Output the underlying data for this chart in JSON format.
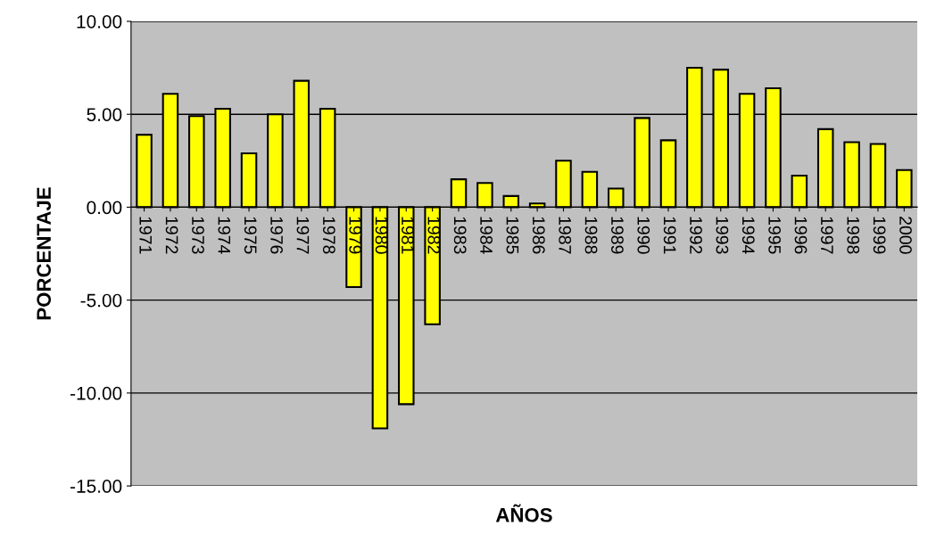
{
  "chart_data": {
    "type": "bar",
    "xlabel": "AÑOS",
    "ylabel": "PORCENTAJE",
    "categories": [
      "1971",
      "1972",
      "1973",
      "1974",
      "1975",
      "1976",
      "1977",
      "1978",
      "1979",
      "1980",
      "1981",
      "1982",
      "1983",
      "1984",
      "1985",
      "1986",
      "1987",
      "1988",
      "1989",
      "1990",
      "1991",
      "1992",
      "1993",
      "1994",
      "1995",
      "1996",
      "1997",
      "1998",
      "1999",
      "2000"
    ],
    "values": [
      3.9,
      6.1,
      4.9,
      5.3,
      2.9,
      5.0,
      6.8,
      5.3,
      -4.3,
      -11.9,
      -10.6,
      -6.3,
      1.5,
      1.3,
      0.6,
      0.2,
      2.5,
      1.9,
      1.0,
      4.8,
      3.6,
      7.5,
      7.4,
      6.1,
      6.4,
      1.7,
      4.2,
      3.5,
      3.4,
      2.0
    ],
    "color": "#ffff00",
    "ylim": [
      -15,
      10
    ],
    "yticks": [
      {
        "value": -15,
        "label": "-15.00"
      },
      {
        "value": -10,
        "label": "-10.00"
      },
      {
        "value": -5,
        "label": "-5.00"
      },
      {
        "value": 0,
        "label": "0.00"
      },
      {
        "value": 5,
        "label": "5.00"
      },
      {
        "value": 10,
        "label": "10.00"
      }
    ],
    "grid": "y"
  }
}
